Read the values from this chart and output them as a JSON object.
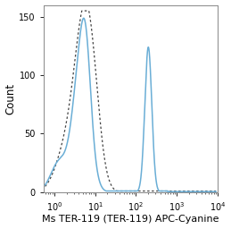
{
  "title": "",
  "xlabel": "Ms TER-119 (TER-119) APC-Cyanine",
  "ylabel": "Count",
  "xlim_log": [
    0.55,
    10000
  ],
  "ylim": [
    0,
    160
  ],
  "yticks": [
    0,
    50,
    100,
    150
  ],
  "background_color": "#ffffff",
  "plot_bg_color": "#ffffff",
  "line1_color": "#6aaed6",
  "line2_color": "#444444",
  "xlabel_fontsize": 8.0,
  "ylabel_fontsize": 8.5,
  "tick_fontsize": 7.0
}
